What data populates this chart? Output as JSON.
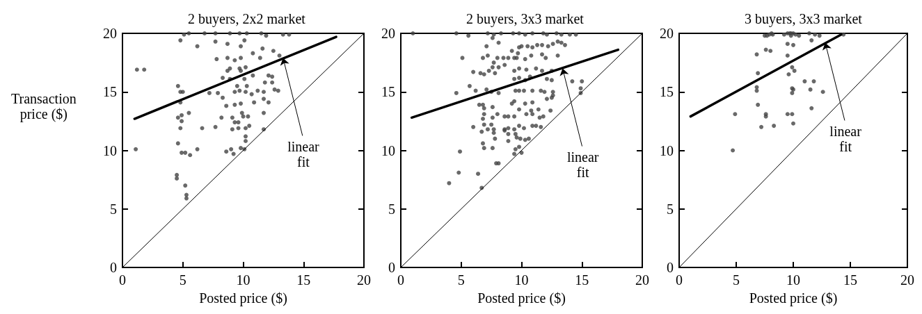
{
  "chart_data": [
    {
      "type": "scatter",
      "title": "2 buyers, 2x2 market",
      "xlabel": "Posted price ($)",
      "ylabel": "Transaction\nprice ($)",
      "xlim": [
        0,
        20
      ],
      "ylim": [
        0,
        20
      ],
      "xticks": [
        0,
        5,
        10,
        15,
        20
      ],
      "yticks": [
        0,
        5,
        10,
        15,
        20
      ],
      "grid": false,
      "annotations": [
        {
          "text": "linear\nfit",
          "x": 13.3,
          "y": 17.9
        }
      ],
      "series": [
        {
          "marker": "circle",
          "color": "#444444",
          "x": [
            1.2,
            1.8,
            1.1,
            4.6,
            4.8,
            5.0,
            4.8,
            4.6,
            4.9,
            4.9,
            5.5,
            4.8,
            4.6,
            4.9,
            5.2,
            5.6,
            6.2,
            4.5,
            4.5,
            5.2,
            5.3,
            5.3,
            4.8,
            6.2,
            5.5,
            5.1,
            6.8,
            7.7,
            8.9,
            9.7,
            10.3,
            11.5,
            11.9,
            13.3,
            13.8,
            7.7,
            8.7,
            9.8,
            10.1,
            11.6,
            12.5,
            13.0,
            7.8,
            8.7,
            9.8,
            10.8,
            11.4,
            9.3,
            8.9,
            9.7,
            10.2,
            8.7,
            9.8,
            8.3,
            8.9,
            10.1,
            10.8,
            12.1,
            12.4,
            11.8,
            12.4,
            9.5,
            10.3,
            9.7,
            10.2,
            9.3,
            7.9,
            7.2,
            11.2,
            11.7,
            12.6,
            12.9,
            8.3,
            10.7,
            11.7,
            9.3,
            9.8,
            10.9,
            12.1,
            8.6,
            9.9,
            11.7,
            8.2,
            9.1,
            10.0,
            10.4,
            9.3,
            9.6,
            9.1,
            9.6,
            10.2,
            10.5,
            6.6,
            7.7,
            11.7,
            10.2,
            10.2,
            8.6,
            9.0,
            9.2,
            9.8,
            10.1
          ],
          "values": [
            16.9,
            16.9,
            10.1,
            15.5,
            15.0,
            15.0,
            14.1,
            12.8,
            13.0,
            12.5,
            13.2,
            11.9,
            10.6,
            9.8,
            9.8,
            9.6,
            10.1,
            7.9,
            7.6,
            7.0,
            6.2,
            5.9,
            19.4,
            18.9,
            20,
            19.9,
            20,
            20,
            20,
            20,
            20,
            20,
            19.8,
            19.9,
            19.9,
            19.3,
            19.1,
            18.9,
            19.4,
            18.7,
            18.5,
            18.1,
            17.8,
            17.9,
            17.9,
            18.3,
            17.9,
            17.7,
            17.0,
            17.0,
            17.1,
            16.8,
            16.8,
            16.2,
            16.1,
            16.1,
            16.4,
            16.4,
            16.3,
            15.8,
            15.8,
            15.5,
            15.5,
            15.1,
            15.0,
            15.0,
            14.9,
            14.9,
            15.1,
            15.0,
            15.2,
            15.1,
            14.5,
            14.8,
            14.4,
            13.9,
            14.0,
            14.1,
            14.1,
            13.8,
            13.2,
            13.2,
            12.8,
            12.8,
            12.9,
            12.9,
            12.4,
            12.4,
            11.8,
            11.9,
            11.9,
            12.1,
            11.9,
            12.0,
            11.8,
            11.2,
            10.8,
            9.9,
            10.1,
            9.7,
            10.2,
            10.1
          ]
        },
        {
          "type": "line",
          "color": "#000000",
          "x": [
            1.0,
            17.7
          ],
          "values": [
            12.7,
            19.7
          ]
        },
        {
          "type": "line",
          "color": "#000000",
          "x": [
            0,
            20
          ],
          "values": [
            0,
            20
          ]
        }
      ]
    },
    {
      "type": "scatter",
      "title": "2 buyers, 3x3 market",
      "xlabel": "Posted price ($)",
      "xlim": [
        0,
        20
      ],
      "ylim": [
        0,
        20
      ],
      "xticks": [
        0,
        5,
        10,
        15,
        20
      ],
      "yticks": [
        0,
        5,
        10,
        15,
        20
      ],
      "grid": false,
      "annotations": [
        {
          "text": "linear\nfit",
          "x": 13.4,
          "y": 17.0
        }
      ],
      "series": [
        {
          "marker": "circle",
          "color": "#444444",
          "x": [
            1.0,
            4.6,
            5.6,
            7.2,
            7.7,
            8.3,
            9.3,
            9.8,
            10.3,
            10.9,
            11.8,
            12.1,
            12.9,
            13.3,
            14.0,
            14.5,
            7.6,
            8.1,
            7.1,
            9.8,
            10.0,
            10.5,
            10.9,
            11.3,
            11.7,
            12.2,
            12.6,
            13.0,
            13.3,
            13.6,
            9.2,
            9.7,
            5.1,
            7.2,
            6.8,
            8.0,
            8.5,
            8.9,
            9.4,
            9.6,
            10.3,
            10.8,
            11.7,
            12.0,
            13.0,
            7.7,
            8.1,
            7.6,
            8.6,
            9.4,
            9.8,
            10.4,
            11.2,
            6.0,
            6.6,
            6.9,
            7.3,
            7.8,
            9.4,
            9.8,
            10.3,
            10.7,
            11.7,
            12.5,
            12.1,
            12.5,
            14.2,
            15.0,
            14.9,
            14.9,
            5.7,
            6.2,
            4.6,
            7.1,
            7.5,
            8.1,
            9.5,
            9.8,
            10.2,
            10.9,
            11.6,
            11.9,
            12.6,
            12.6,
            12.5,
            6.5,
            6.8,
            9.2,
            9.4,
            10.3,
            10.9,
            12.1,
            6.9,
            7.6,
            9.8,
            10.8,
            11.4,
            12.4,
            6.9,
            8.0,
            8.6,
            8.9,
            9.4,
            10.4,
            10.9,
            11.5,
            11.8,
            7.6,
            6.8,
            6.0,
            6.9,
            7.5,
            7.2,
            7.7,
            8.6,
            8.9,
            9.4,
            9.8,
            10.2,
            10.9,
            11.2,
            11.6,
            6.7,
            7.7,
            8.6,
            8.9,
            9.5,
            9.6,
            9.9,
            10.3,
            10.6,
            8.9,
            7.8,
            6.8,
            6.9,
            7.6,
            9.5,
            9.8,
            10.0,
            9.4,
            4.9,
            7.9,
            8.1,
            4.8,
            6.4,
            4.0,
            6.7
          ],
          "values": [
            20,
            20,
            19.8,
            20,
            19.9,
            20,
            20,
            20,
            19.9,
            20,
            20,
            19.9,
            20,
            19.9,
            19.9,
            19.9,
            19.6,
            19.2,
            18.9,
            18.8,
            18.9,
            18.9,
            18.8,
            19.0,
            19.0,
            18.9,
            19.1,
            19.3,
            19.2,
            19.0,
            18.5,
            18.3,
            17.9,
            18.1,
            17.9,
            17.9,
            17.9,
            17.9,
            17.9,
            17.9,
            17.8,
            18.1,
            18.2,
            17.9,
            18.1,
            17.5,
            17.1,
            17.1,
            17.3,
            16.8,
            17.0,
            16.9,
            17.0,
            16.7,
            16.6,
            16.5,
            16.8,
            16.6,
            16.1,
            16.2,
            16.0,
            16.3,
            16.8,
            16.8,
            16.1,
            16.0,
            15.9,
            15.9,
            15.3,
            14.9,
            15.5,
            15.1,
            14.9,
            15.2,
            15.0,
            14.9,
            15.1,
            15.1,
            15.1,
            15.1,
            15.1,
            15.0,
            15.0,
            14.7,
            14.5,
            13.9,
            13.9,
            14.0,
            14.2,
            14.0,
            14.1,
            14.4,
            13.6,
            13.7,
            13.5,
            13.4,
            13.5,
            13.4,
            13.1,
            13.1,
            12.9,
            12.9,
            12.9,
            13.1,
            13.1,
            12.8,
            12.9,
            12.8,
            12.7,
            12.0,
            12.2,
            12.2,
            11.8,
            11.8,
            11.8,
            11.9,
            11.8,
            12.1,
            11.9,
            12.1,
            12.1,
            12.0,
            11.6,
            11.5,
            11.7,
            11.4,
            11.4,
            11.1,
            11.0,
            10.9,
            11.0,
            10.8,
            11.0,
            10.6,
            10.2,
            10.2,
            10.1,
            10.3,
            9.8,
            9.7,
            9.9,
            8.9,
            8.9,
            8.1,
            8.0,
            7.2,
            6.8
          ]
        },
        {
          "type": "line",
          "color": "#000000",
          "x": [
            0.9,
            18.0
          ],
          "values": [
            12.8,
            18.6
          ]
        },
        {
          "type": "line",
          "color": "#000000",
          "x": [
            0,
            20
          ],
          "values": [
            0,
            20
          ]
        }
      ]
    },
    {
      "type": "scatter",
      "title": "3 buyers, 3x3 market",
      "xlabel": "Posted price ($)",
      "xlim": [
        0,
        20
      ],
      "ylim": [
        0,
        20
      ],
      "xticks": [
        0,
        5,
        10,
        15,
        20
      ],
      "yticks": [
        0,
        5,
        10,
        15,
        20
      ],
      "grid": false,
      "annotations": [
        {
          "text": "linear\nfit",
          "x": 12.8,
          "y": 19.2
        }
      ],
      "series": [
        {
          "marker": "circle",
          "color": "#444444",
          "x": [
            7.5,
            7.7,
            7.9,
            8.1,
            8.2,
            9.2,
            9.5,
            9.7,
            9.8,
            10.0,
            9.8,
            10.2,
            10.5,
            11.4,
            11.9,
            12.3,
            14.4,
            9.5,
            10.0,
            11.6,
            7.6,
            8.0,
            6.8,
            9.5,
            9.9,
            10.1,
            6.9,
            9.6,
            11.0,
            11.8,
            6.8,
            6.8,
            9.9,
            10.0,
            9.9,
            11.5,
            12.6,
            6.9,
            11.6,
            4.9,
            7.6,
            7.6,
            9.5,
            9.9,
            10.0,
            7.2,
            8.3,
            4.7
          ],
          "values": [
            19.8,
            19.8,
            19.9,
            20,
            19.9,
            19.9,
            20,
            20,
            20,
            20,
            19.8,
            19.9,
            19.8,
            20,
            19.9,
            19.8,
            19.9,
            19.1,
            19.0,
            19.4,
            18.6,
            18.5,
            18.2,
            18.1,
            17.1,
            16.8,
            16.6,
            16.5,
            15.9,
            15.9,
            15.4,
            15.1,
            15.3,
            15.2,
            14.9,
            15.2,
            15.0,
            13.9,
            13.6,
            13.1,
            13.1,
            12.9,
            13.1,
            13.1,
            12.3,
            12.0,
            12.1,
            10.0
          ]
        },
        {
          "type": "line",
          "color": "#000000",
          "x": [
            1.0,
            14.2
          ],
          "values": [
            12.9,
            19.9
          ]
        },
        {
          "type": "line",
          "color": "#000000",
          "x": [
            0,
            20
          ],
          "values": [
            0,
            20
          ]
        }
      ]
    }
  ]
}
